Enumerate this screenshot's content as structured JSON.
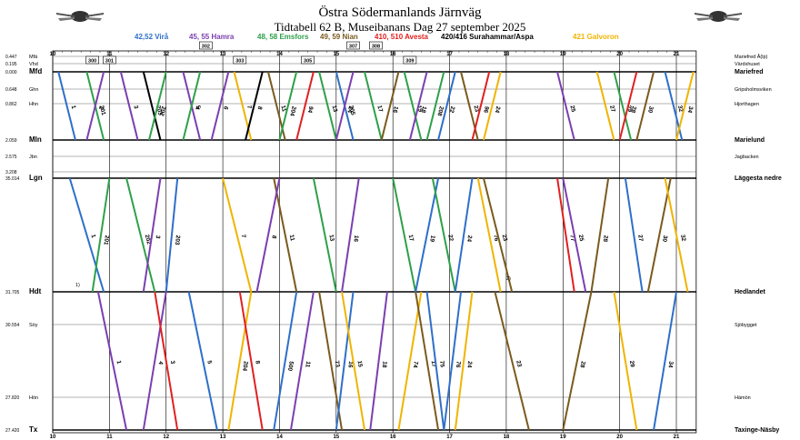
{
  "header": {
    "title": "Östra Södermanlands Järnväg",
    "subtitle": "Tidtabell 62 B, Museibanans Dag 27 september 2025"
  },
  "legend": [
    {
      "label": "42,52 Virå",
      "color": "#2e6fc9"
    },
    {
      "label": "45, 55 Hamra",
      "color": "#7b3fb0"
    },
    {
      "label": "48, 58 Emsfors",
      "color": "#2ea04a"
    },
    {
      "label": "49, 59 Nian",
      "color": "#7a5a1e"
    },
    {
      "label": "410, 510 Avesta",
      "color": "#e02020"
    },
    {
      "label": "420/416 Surahammar/Aspa",
      "color": "#000000"
    },
    {
      "label": "421 Galvoron",
      "color": "#f0b400"
    }
  ],
  "chart_data": {
    "type": "line",
    "title": "Tidtabell 62 B, Museibanans Dag 27 september 2025",
    "xlim": [
      10,
      21
    ],
    "x_ticks": [
      "10",
      "11",
      "12",
      "13",
      "14",
      "15",
      "16",
      "17",
      "18",
      "19",
      "20",
      "21"
    ],
    "stations": [
      {
        "km": "0.447",
        "code": "Mfä",
        "name": "Mariefred Å(lp)",
        "major": false
      },
      {
        "km": "0.195",
        "code": "Vhd",
        "name": "Värdshuset",
        "major": false
      },
      {
        "km": "0.000",
        "code": "Mfd",
        "name": "Mariefred",
        "major": true
      },
      {
        "km": "0.648",
        "code": "Ghn",
        "name": "Gripsholmsviken",
        "major": false
      },
      {
        "km": "0.862",
        "code": "Hhn",
        "name": "Hjorthagen",
        "major": false
      },
      {
        "km": "2.059",
        "code": "Mln",
        "name": "Marielund",
        "major": true
      },
      {
        "km": "2.575",
        "code": "Jbn",
        "name": "Jagbacken",
        "major": false
      },
      {
        "km": "3.208",
        "code": "",
        "name": "",
        "major": false
      },
      {
        "km": "35.014",
        "code": "Lgn",
        "name": "Läggesta nedre",
        "major": true
      },
      {
        "km": "31.705",
        "code": "Hdt",
        "name": "Hedlandet",
        "major": true
      },
      {
        "km": "30.554",
        "code": "Söy",
        "name": "Sjöbygget",
        "major": false
      },
      {
        "km": "27.820",
        "code": "Hön",
        "name": "Hämön",
        "major": false
      },
      {
        "km": "27.420",
        "code": "Tx",
        "name": "Taxinge-Näsby",
        "major": true
      }
    ],
    "upper_trains": [
      {
        "id": "1",
        "color": "#2e6fc9",
        "t0": 10.1,
        "t1": 10.4,
        "down": true
      },
      {
        "id": "201",
        "color": "#2ea04a",
        "t0": 10.6,
        "t1": 10.9,
        "down": true
      },
      {
        "id": "2",
        "color": "#7b3fb0",
        "t0": 10.9,
        "t1": 10.6,
        "down": false
      },
      {
        "id": "3",
        "color": "#7b3fb0",
        "t0": 11.2,
        "t1": 11.5,
        "down": true
      },
      {
        "id": "203",
        "color": "#000000",
        "t0": 11.6,
        "t1": 11.9,
        "down": true
      },
      {
        "id": "202",
        "color": "#2ea04a",
        "t0": 12.0,
        "t1": 11.7,
        "down": false
      },
      {
        "id": "5",
        "color": "#7b3fb0",
        "t0": 12.3,
        "t1": 12.6,
        "down": true
      },
      {
        "id": "4",
        "color": "#2ea04a",
        "t0": 12.6,
        "t1": 12.3,
        "down": false
      },
      {
        "id": "6",
        "color": "#7b3fb0",
        "t0": 13.1,
        "t1": 12.8,
        "down": false
      },
      {
        "id": "7",
        "color": "#f0b400",
        "t0": 13.2,
        "t1": 13.5,
        "down": true
      },
      {
        "id": "8",
        "color": "#000000",
        "t0": 13.7,
        "t1": 13.4,
        "down": false
      },
      {
        "id": "11",
        "color": "#7a5a1e",
        "t0": 13.8,
        "t1": 14.1,
        "down": true
      },
      {
        "id": "204",
        "color": "#2ea04a",
        "t0": 14.3,
        "t1": 14.0,
        "down": false
      },
      {
        "id": "94",
        "color": "#e02020",
        "t0": 14.6,
        "t1": 14.3,
        "down": false
      },
      {
        "id": "13",
        "color": "#2ea04a",
        "t0": 14.7,
        "t1": 15.0,
        "down": true
      },
      {
        "id": "205",
        "color": "#2e6fc9",
        "t0": 15.0,
        "t1": 15.3,
        "down": true
      },
      {
        "id": "14",
        "color": "#7b3fb0",
        "t0": 15.3,
        "t1": 15.0,
        "down": false
      },
      {
        "id": "17",
        "color": "#2ea04a",
        "t0": 15.5,
        "t1": 15.8,
        "down": true
      },
      {
        "id": "16",
        "color": "#7a5a1e",
        "t0": 16.1,
        "t1": 15.8,
        "down": false
      },
      {
        "id": "19",
        "color": "#2ea04a",
        "t0": 16.2,
        "t1": 16.5,
        "down": true
      },
      {
        "id": "18",
        "color": "#7b3fb0",
        "t0": 16.6,
        "t1": 16.3,
        "down": false
      },
      {
        "id": "208",
        "color": "#2ea04a",
        "t0": 16.9,
        "t1": 16.6,
        "down": false
      },
      {
        "id": "22",
        "color": "#2e6fc9",
        "t0": 17.1,
        "t1": 16.8,
        "down": false
      },
      {
        "id": "23",
        "color": "#7a5a1e",
        "t0": 17.2,
        "t1": 17.5,
        "down": true
      },
      {
        "id": "96",
        "color": "#e02020",
        "t0": 17.7,
        "t1": 17.4,
        "down": false
      },
      {
        "id": "24",
        "color": "#f0b400",
        "t0": 17.9,
        "t1": 17.6,
        "down": false
      },
      {
        "id": "25",
        "color": "#7b3fb0",
        "t0": 18.9,
        "t1": 19.2,
        "down": true
      },
      {
        "id": "27",
        "color": "#f0b400",
        "t0": 19.6,
        "t1": 19.9,
        "down": true
      },
      {
        "id": "29",
        "color": "#2ea04a",
        "t0": 19.9,
        "t1": 20.2,
        "down": true
      },
      {
        "id": "28",
        "color": "#e02020",
        "t0": 20.3,
        "t1": 20.0,
        "down": false
      },
      {
        "id": "30",
        "color": "#7a5a1e",
        "t0": 20.6,
        "t1": 20.3,
        "down": false
      },
      {
        "id": "32",
        "color": "#2e6fc9",
        "t0": 20.8,
        "t1": 21.1,
        "down": true
      },
      {
        "id": "34",
        "color": "#f0b400",
        "t0": 21.3,
        "t1": 21.0,
        "down": false
      }
    ],
    "middle_trains": [
      {
        "id": "1",
        "color": "#2e6fc9",
        "t0": 10.3,
        "t1": 10.9,
        "down": true
      },
      {
        "id": "201",
        "color": "#2ea04a",
        "t0": 11.0,
        "t1": 10.7,
        "down": false
      },
      {
        "id": "202",
        "color": "#2ea04a",
        "t0": 11.3,
        "t1": 11.8,
        "down": true
      },
      {
        "id": "3",
        "color": "#7b3fb0",
        "t0": 11.9,
        "t1": 11.6,
        "down": false
      },
      {
        "id": "203",
        "color": "#2e6fc9",
        "t0": 12.2,
        "t1": 12.0,
        "down": false
      },
      {
        "id": "7",
        "color": "#f0b400",
        "t0": 13.0,
        "t1": 13.5,
        "down": true
      },
      {
        "id": "11",
        "color": "#7a5a1e",
        "t0": 13.9,
        "t1": 14.3,
        "down": true
      },
      {
        "id": "8",
        "color": "#7b3fb0",
        "t0": 14.0,
        "t1": 13.6,
        "down": false
      },
      {
        "id": "13",
        "color": "#2ea04a",
        "t0": 14.6,
        "t1": 15.0,
        "down": true
      },
      {
        "id": "16",
        "color": "#7b3fb0",
        "t0": 15.4,
        "t1": 15.1,
        "down": false
      },
      {
        "id": "17",
        "color": "#2ea04a",
        "t0": 16.0,
        "t1": 16.4,
        "down": true
      },
      {
        "id": "19",
        "color": "#2e6fc9",
        "t0": 16.8,
        "t1": 16.4,
        "down": false
      },
      {
        "id": "22",
        "color": "#2ea04a",
        "t0": 16.7,
        "t1": 17.1,
        "down": true
      },
      {
        "id": "24",
        "color": "#2e6fc9",
        "t0": 17.4,
        "t1": 17.1,
        "down": false
      },
      {
        "id": "76",
        "color": "#f0b400",
        "t0": 17.5,
        "t1": 17.9,
        "down": true
      },
      {
        "id": "23",
        "color": "#7a5a1e",
        "t0": 17.6,
        "t1": 18.1,
        "down": true
      },
      {
        "id": "77",
        "color": "#e02020",
        "t0": 18.9,
        "t1": 19.2,
        "down": true
      },
      {
        "id": "25",
        "color": "#7b3fb0",
        "t0": 19.0,
        "t1": 19.4,
        "down": true
      },
      {
        "id": "28",
        "color": "#7a5a1e",
        "t0": 19.8,
        "t1": 19.5,
        "down": false
      },
      {
        "id": "27",
        "color": "#2e6fc9",
        "t0": 20.1,
        "t1": 20.4,
        "down": true
      },
      {
        "id": "30",
        "color": "#7a5a1e",
        "t0": 20.9,
        "t1": 20.5,
        "down": false
      },
      {
        "id": "32",
        "color": "#f0b400",
        "t0": 20.8,
        "t1": 21.2,
        "down": true
      }
    ],
    "lower_trains": [
      {
        "id": "1",
        "color": "#7b3fb0",
        "t0": 10.8,
        "t1": 11.3,
        "down": true
      },
      {
        "id": "4",
        "color": "#7b3fb0",
        "t0": 12.0,
        "t1": 11.6,
        "down": false
      },
      {
        "id": "3",
        "color": "#e02020",
        "t0": 11.8,
        "t1": 12.2,
        "down": true
      },
      {
        "id": "5",
        "color": "#2e6fc9",
        "t0": 12.4,
        "t1": 12.9,
        "down": true
      },
      {
        "id": "204",
        "color": "#f0b400",
        "t0": 13.5,
        "t1": 13.1,
        "down": false
      },
      {
        "id": "8",
        "color": "#e02020",
        "t0": 13.3,
        "t1": 13.7,
        "down": true
      },
      {
        "id": "500",
        "color": "#2e6fc9",
        "t0": 14.3,
        "t1": 13.9,
        "down": false
      },
      {
        "id": "11",
        "color": "#7b3fb0",
        "t0": 14.6,
        "t1": 14.2,
        "down": false
      },
      {
        "id": "73",
        "color": "#7a5a1e",
        "t0": 14.7,
        "t1": 15.1,
        "down": true
      },
      {
        "id": "16",
        "color": "#2e6fc9",
        "t0": 15.3,
        "t1": 15.0,
        "down": false
      },
      {
        "id": "15",
        "color": "#f0b400",
        "t0": 15.1,
        "t1": 15.5,
        "down": true
      },
      {
        "id": "18",
        "color": "#7b3fb0",
        "t0": 15.9,
        "t1": 15.6,
        "down": false
      },
      {
        "id": "74",
        "color": "#f0b400",
        "t0": 16.5,
        "t1": 16.1,
        "down": false
      },
      {
        "id": "17",
        "color": "#7a5a1e",
        "t0": 16.4,
        "t1": 16.8,
        "down": true
      },
      {
        "id": "75",
        "color": "#2e6fc9",
        "t0": 16.6,
        "t1": 16.9,
        "down": true
      },
      {
        "id": "76",
        "color": "#2e6fc9",
        "t0": 17.2,
        "t1": 16.9,
        "down": false
      },
      {
        "id": "24",
        "color": "#f0b400",
        "t0": 17.4,
        "t1": 17.1,
        "down": false
      },
      {
        "id": "23",
        "color": "#7a5a1e",
        "t0": 17.8,
        "t1": 18.4,
        "down": true
      },
      {
        "id": "28",
        "color": "#7a5a1e",
        "t0": 19.5,
        "t1": 19.0,
        "down": false
      },
      {
        "id": "29",
        "color": "#f0b400",
        "t0": 19.9,
        "t1": 20.3,
        "down": true
      },
      {
        "id": "34",
        "color": "#2e6fc9",
        "t0": 21.0,
        "t1": 20.6,
        "down": false
      }
    ],
    "top_boxes": [
      "300",
      "301",
      "302",
      "303",
      "305",
      "307",
      "308",
      "309"
    ],
    "footnotes": [
      "1)",
      "2)"
    ]
  }
}
